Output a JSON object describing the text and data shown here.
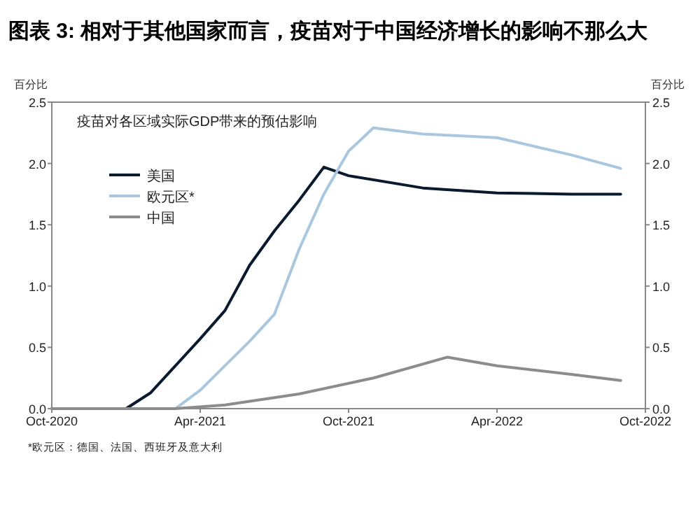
{
  "chart_data": {
    "type": "line",
    "title": "图表 3: 相对于其他国家而言，疫苗对于中国经济增长的影响不那么大",
    "ylabel": "百分比",
    "y2label": "百分比",
    "annotations": [
      "疫苗对各区域实际GDP带来的预估影响",
      "*欧元区：德国、法国、西班牙及意大利"
    ],
    "xlim": [
      "2020-10",
      "2022-10"
    ],
    "xticks": [
      {
        "value": "2020-10",
        "label": "Oct-2020"
      },
      {
        "value": "2021-04",
        "label": "Apr-2021"
      },
      {
        "value": "2021-10",
        "label": "Oct-2021"
      },
      {
        "value": "2022-04",
        "label": "Apr-2022"
      },
      {
        "value": "2022-10",
        "label": "Oct-2022"
      }
    ],
    "ylim": [
      0,
      2.5
    ],
    "yticks": [
      {
        "value": 0,
        "label": "0.0"
      },
      0.5,
      {
        "value": 1,
        "label": "1.0"
      },
      1.5,
      {
        "value": 2,
        "label": "2.0"
      },
      2.5
    ],
    "y2lim": [
      0,
      2.5
    ],
    "y2ticks": [
      {
        "value": 0,
        "label": "0.0"
      },
      0.5,
      {
        "value": 1,
        "label": "1.0"
      },
      1.5,
      {
        "value": 2,
        "label": "2.0"
      },
      2.5
    ],
    "legend": "top left",
    "grid": false,
    "series": [
      {
        "name": "美国",
        "color": "#0a1a2e",
        "x": [
          "2020-10",
          "2021-01",
          "2021-02",
          "2021-03",
          "2021-04",
          "2021-05",
          "2021-06",
          "2021-07",
          "2021-08",
          "2021-09",
          "2021-10",
          "2022-01",
          "2022-04",
          "2022-07",
          "2022-09"
        ],
        "values": [
          0,
          0,
          0.13,
          0.35,
          0.57,
          0.8,
          1.17,
          1.45,
          1.7,
          1.97,
          1.9,
          1.8,
          1.76,
          1.75,
          1.75
        ]
      },
      {
        "name": "欧元区*",
        "color": "#a9c8e0",
        "x": [
          "2020-10",
          "2021-03",
          "2021-04",
          "2021-05",
          "2021-06",
          "2021-07",
          "2021-08",
          "2021-09",
          "2021-10",
          "2021-11",
          "2022-01",
          "2022-04",
          "2022-07",
          "2022-09"
        ],
        "values": [
          0,
          0,
          0.15,
          0.35,
          0.55,
          0.77,
          1.3,
          1.75,
          2.1,
          2.29,
          2.24,
          2.21,
          2.07,
          1.96
        ]
      },
      {
        "name": "中国",
        "color": "#8c8c8c",
        "x": [
          "2020-10",
          "2021-03",
          "2021-05",
          "2021-08",
          "2021-11",
          "2022-02",
          "2022-04",
          "2022-07",
          "2022-09"
        ],
        "values": [
          0,
          0,
          0.03,
          0.12,
          0.25,
          0.42,
          0.35,
          0.28,
          0.23
        ]
      }
    ]
  }
}
